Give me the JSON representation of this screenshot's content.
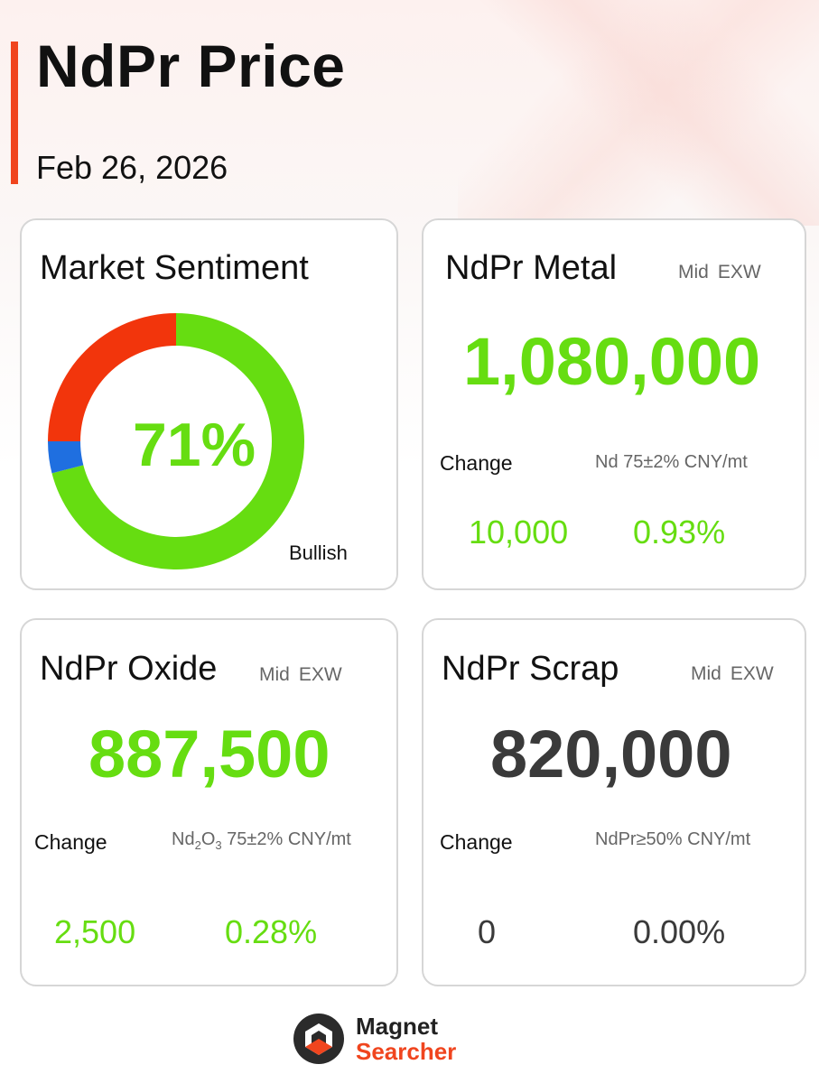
{
  "header": {
    "title": "NdPr Price",
    "date": "Feb 26, 2026"
  },
  "sentiment": {
    "title": "Market Sentiment",
    "percent_label": "71%",
    "label": "Bullish",
    "segments": [
      {
        "name": "bullish",
        "value": 71,
        "color": "#66dd11"
      },
      {
        "name": "neutral",
        "value": 4,
        "color": "#1f6fe0"
      },
      {
        "name": "bearish",
        "value": 25,
        "color": "#f2350c"
      }
    ]
  },
  "metal": {
    "title": "NdPr Metal",
    "mid": "Mid",
    "exw": "EXW",
    "price": "1,080,000",
    "change_label": "Change",
    "spec": "Nd 75±2% CNY/mt",
    "change_abs": "10,000",
    "change_pct": "0.93%"
  },
  "oxide": {
    "title": "NdPr Oxide",
    "mid": "Mid",
    "exw": "EXW",
    "price": "887,500",
    "change_label": "Change",
    "spec_main": "Nd",
    "spec_sub1": "2",
    "spec_mid": "O",
    "spec_sub2": "3",
    "spec_rest": " 75±2% CNY/mt",
    "change_abs": "2,500",
    "change_pct": "0.28%"
  },
  "scrap": {
    "title": "NdPr Scrap",
    "mid": "Mid",
    "exw": "EXW",
    "price": "820,000",
    "change_label": "Change",
    "spec": "NdPr≥50% CNY/mt",
    "change_abs": "0",
    "change_pct": "0.00%"
  },
  "logo": {
    "line1": "Magnet",
    "line2": "Searcher"
  },
  "colors": {
    "accent": "#f0451e",
    "up": "#66dd11",
    "flat": "#3a3a3a"
  }
}
